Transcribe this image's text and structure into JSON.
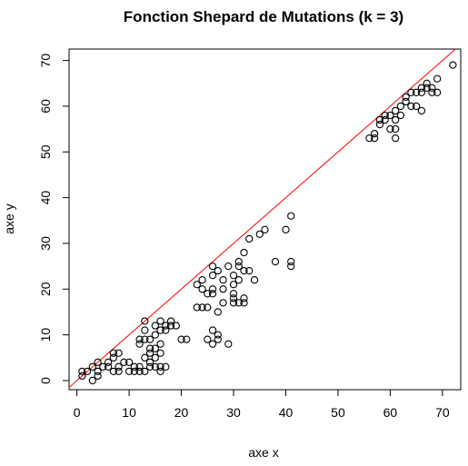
{
  "chart_data": {
    "type": "scatter",
    "title": "Fonction Shepard de Mutations (k = 3)",
    "xlabel": "axe x",
    "ylabel": "axe y",
    "xlim": [
      -1.5,
      73.5
    ],
    "ylim": [
      -2,
      72.5
    ],
    "xticks": [
      0,
      10,
      20,
      30,
      40,
      50,
      60,
      70
    ],
    "yticks": [
      0,
      10,
      20,
      30,
      40,
      50,
      60,
      70
    ],
    "grid": false,
    "legend": "none",
    "point_color": "#000000",
    "reference_line": {
      "intercept": 0,
      "slope": 1,
      "color": "#ff0000"
    },
    "series": [
      {
        "points": [
          [
            1,
            1
          ],
          [
            1,
            2
          ],
          [
            2,
            2
          ],
          [
            3,
            3
          ],
          [
            3,
            0
          ],
          [
            4,
            4
          ],
          [
            4,
            1
          ],
          [
            4,
            2
          ],
          [
            5,
            3
          ],
          [
            6,
            3
          ],
          [
            6,
            4
          ],
          [
            7,
            2
          ],
          [
            7,
            5
          ],
          [
            7,
            6
          ],
          [
            8,
            3
          ],
          [
            8,
            2
          ],
          [
            8,
            6
          ],
          [
            9,
            4
          ],
          [
            10,
            2
          ],
          [
            10,
            4
          ],
          [
            11,
            2
          ],
          [
            11,
            3
          ],
          [
            12,
            2
          ],
          [
            12,
            3
          ],
          [
            12,
            8
          ],
          [
            12,
            9
          ],
          [
            13,
            2
          ],
          [
            13,
            5
          ],
          [
            13,
            9
          ],
          [
            13,
            11
          ],
          [
            13,
            13
          ],
          [
            14,
            3
          ],
          [
            14,
            4
          ],
          [
            14,
            6
          ],
          [
            14,
            7
          ],
          [
            14,
            9
          ],
          [
            15,
            3
          ],
          [
            15,
            5
          ],
          [
            15,
            7
          ],
          [
            15,
            10
          ],
          [
            15,
            12
          ],
          [
            16,
            2
          ],
          [
            16,
            3
          ],
          [
            16,
            6
          ],
          [
            16,
            8
          ],
          [
            16,
            11
          ],
          [
            16,
            13
          ],
          [
            17,
            3
          ],
          [
            17,
            11
          ],
          [
            17,
            12
          ],
          [
            18,
            12
          ],
          [
            18,
            13
          ],
          [
            19,
            12
          ],
          [
            20,
            9
          ],
          [
            21,
            9
          ],
          [
            23,
            16
          ],
          [
            23,
            21
          ],
          [
            24,
            16
          ],
          [
            24,
            20
          ],
          [
            24,
            22
          ],
          [
            25,
            9
          ],
          [
            25,
            16
          ],
          [
            25,
            19
          ],
          [
            26,
            8
          ],
          [
            26,
            11
          ],
          [
            26,
            19
          ],
          [
            26,
            20
          ],
          [
            26,
            23
          ],
          [
            26,
            25
          ],
          [
            27,
            9
          ],
          [
            27,
            10
          ],
          [
            27,
            15
          ],
          [
            27,
            24
          ],
          [
            28,
            17
          ],
          [
            28,
            20
          ],
          [
            28,
            22
          ],
          [
            29,
            8
          ],
          [
            29,
            25
          ],
          [
            30,
            17
          ],
          [
            30,
            18
          ],
          [
            30,
            19
          ],
          [
            30,
            21
          ],
          [
            30,
            23
          ],
          [
            31,
            17
          ],
          [
            31,
            22
          ],
          [
            31,
            25
          ],
          [
            31,
            26
          ],
          [
            32,
            17
          ],
          [
            32,
            18
          ],
          [
            32,
            24
          ],
          [
            32,
            28
          ],
          [
            33,
            24
          ],
          [
            33,
            31
          ],
          [
            34,
            22
          ],
          [
            35,
            32
          ],
          [
            36,
            33
          ],
          [
            38,
            26
          ],
          [
            40,
            33
          ],
          [
            41,
            25
          ],
          [
            41,
            26
          ],
          [
            41,
            36
          ],
          [
            56,
            53
          ],
          [
            57,
            53
          ],
          [
            57,
            54
          ],
          [
            58,
            56
          ],
          [
            58,
            57
          ],
          [
            59,
            57
          ],
          [
            59,
            58
          ],
          [
            60,
            55
          ],
          [
            60,
            58
          ],
          [
            61,
            53
          ],
          [
            61,
            55
          ],
          [
            61,
            57
          ],
          [
            61,
            59
          ],
          [
            62,
            58
          ],
          [
            62,
            60
          ],
          [
            63,
            61
          ],
          [
            63,
            62
          ],
          [
            64,
            60
          ],
          [
            64,
            63
          ],
          [
            65,
            60
          ],
          [
            65,
            63
          ],
          [
            66,
            59
          ],
          [
            66,
            63
          ],
          [
            66,
            64
          ],
          [
            67,
            64
          ],
          [
            67,
            65
          ],
          [
            68,
            63
          ],
          [
            68,
            64
          ],
          [
            69,
            63
          ],
          [
            69,
            66
          ],
          [
            72,
            69
          ]
        ]
      }
    ]
  }
}
